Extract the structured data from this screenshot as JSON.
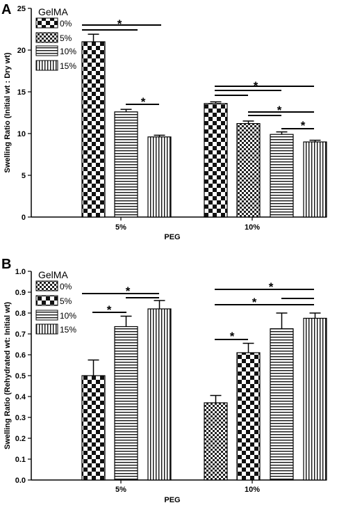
{
  "chart_data": [
    {
      "type": "bar",
      "panel": "A",
      "title": "",
      "xlabel": "PEG",
      "ylabel": "Swelling Ratio (Initial wt : Dry wt)",
      "ylim": [
        0,
        25
      ],
      "yticks": [
        0,
        5,
        10,
        15,
        20,
        25
      ],
      "categories": [
        "5%",
        "10%"
      ],
      "legend_title": "GelMA",
      "legend_position": "top-left",
      "series": [
        {
          "name": "0%",
          "pattern": "checker-coarse",
          "values": [
            21.0,
            13.6
          ],
          "errors": [
            0.9,
            0.2
          ]
        },
        {
          "name": "5%",
          "pattern": "checker-fine",
          "values": [
            null,
            11.2
          ],
          "errors": [
            null,
            0.3
          ]
        },
        {
          "name": "10%",
          "pattern": "horizontal-stripes",
          "values": [
            12.6,
            9.9
          ],
          "errors": [
            0.3,
            0.3
          ]
        },
        {
          "name": "15%",
          "pattern": "vertical-stripes",
          "values": [
            9.6,
            9.0
          ],
          "errors": [
            0.2,
            0.2
          ]
        }
      ],
      "significance_marker": "*"
    },
    {
      "type": "bar",
      "panel": "B",
      "title": "",
      "xlabel": "PEG",
      "ylabel": "Swelling Ratio (Rehydrated wt: Initial wt)",
      "ylim": [
        0,
        1.0
      ],
      "yticks": [
        "0.0",
        "0.1",
        "0.2",
        "0.3",
        "0.4",
        "0.5",
        "0.6",
        "0.7",
        "0.8",
        "0.9",
        "1.0"
      ],
      "categories": [
        "5%",
        "10%"
      ],
      "legend_title": "GelMA",
      "legend_position": "top-left",
      "series": [
        {
          "name": "0%",
          "pattern": "checker-fine",
          "values": [
            null,
            0.37
          ],
          "errors": [
            null,
            0.035
          ]
        },
        {
          "name": "5%",
          "pattern": "checker-coarse",
          "values": [
            0.5,
            0.61
          ],
          "errors": [
            0.075,
            0.045
          ]
        },
        {
          "name": "10%",
          "pattern": "horizontal-stripes",
          "values": [
            0.735,
            0.725
          ],
          "errors": [
            0.05,
            0.075
          ]
        },
        {
          "name": "15%",
          "pattern": "vertical-stripes",
          "values": [
            0.82,
            0.775
          ],
          "errors": [
            0.04,
            0.025
          ]
        }
      ],
      "significance_marker": "*"
    }
  ]
}
